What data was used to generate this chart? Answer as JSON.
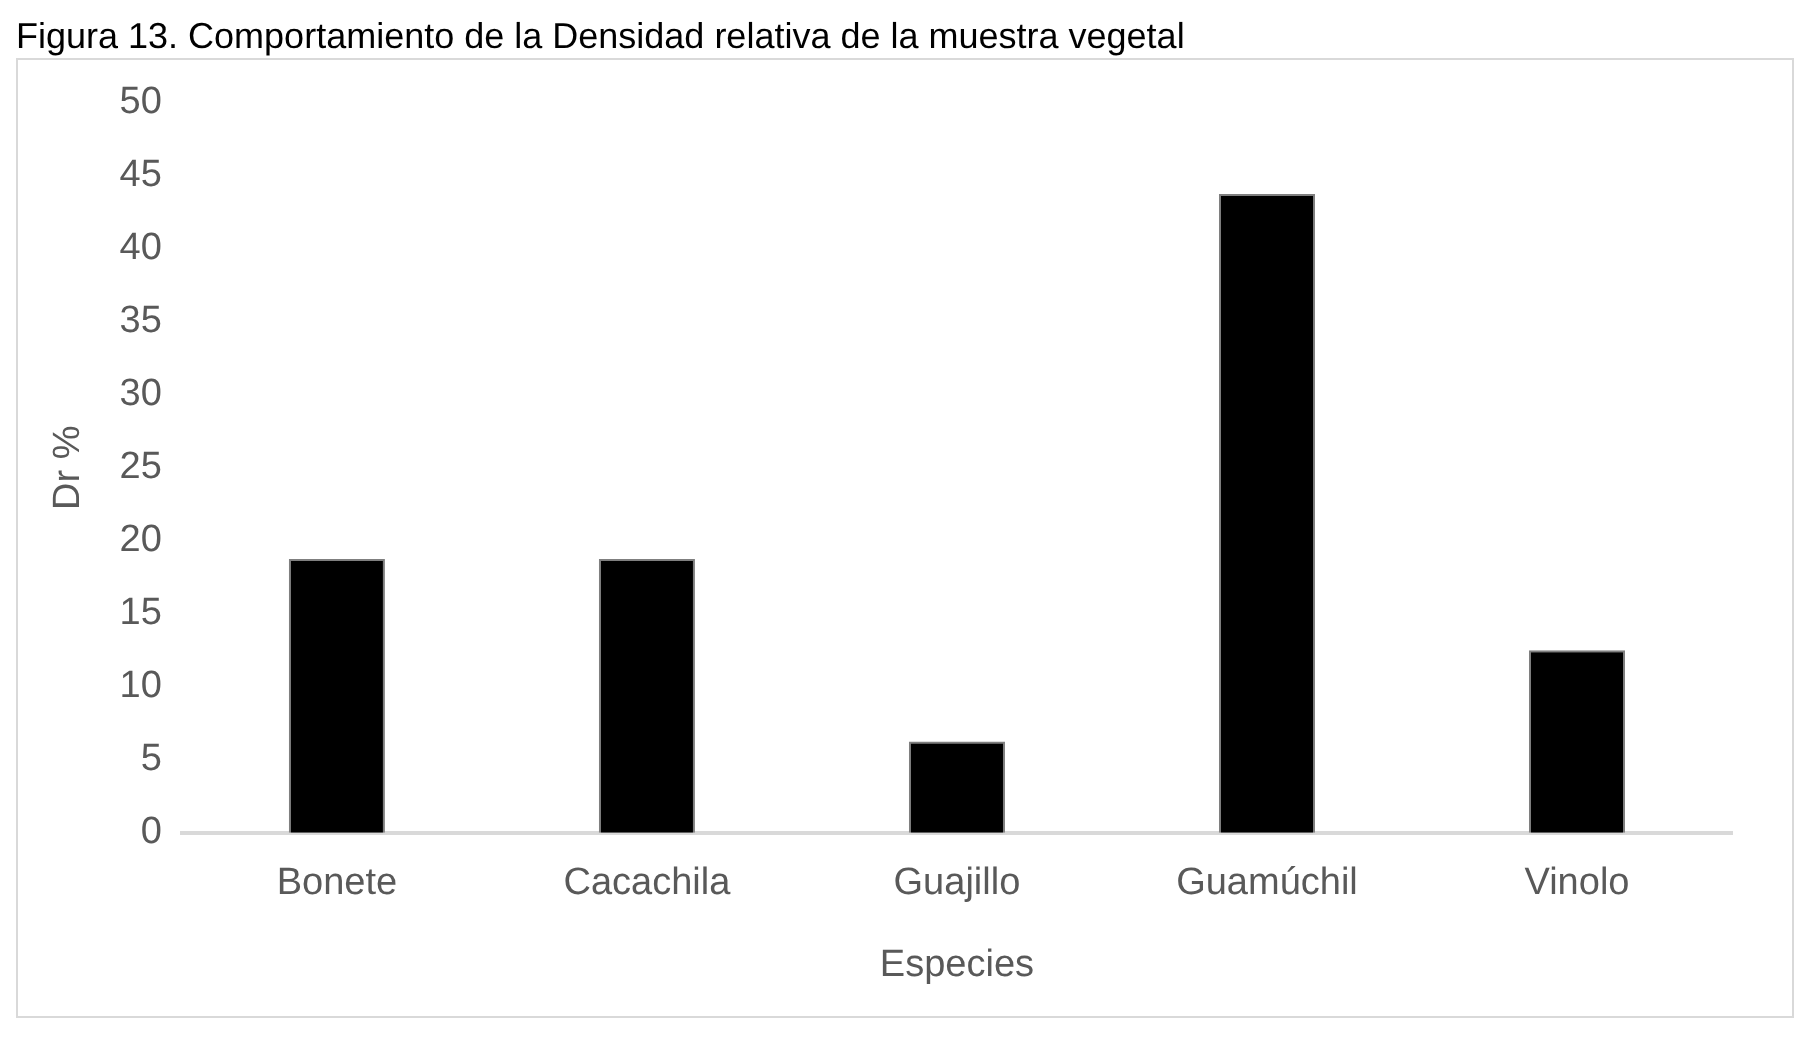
{
  "chart_data": {
    "type": "bar",
    "title": "Figura 13. Comportamiento de la Densidad relativa de la muestra vegetal",
    "xlabel": "Especies",
    "ylabel": "Dr %",
    "categories": [
      "Bonete",
      "Cacachila",
      "Guajillo",
      "Guamúchil",
      "Vinolo"
    ],
    "values": [
      18.75,
      18.75,
      6.25,
      43.75,
      12.5
    ],
    "color": "#000000",
    "ylim": [
      0,
      50
    ],
    "yticks": [
      0,
      5,
      10,
      15,
      20,
      25,
      30,
      35,
      40,
      45,
      50
    ],
    "grid": false,
    "legend": false
  }
}
